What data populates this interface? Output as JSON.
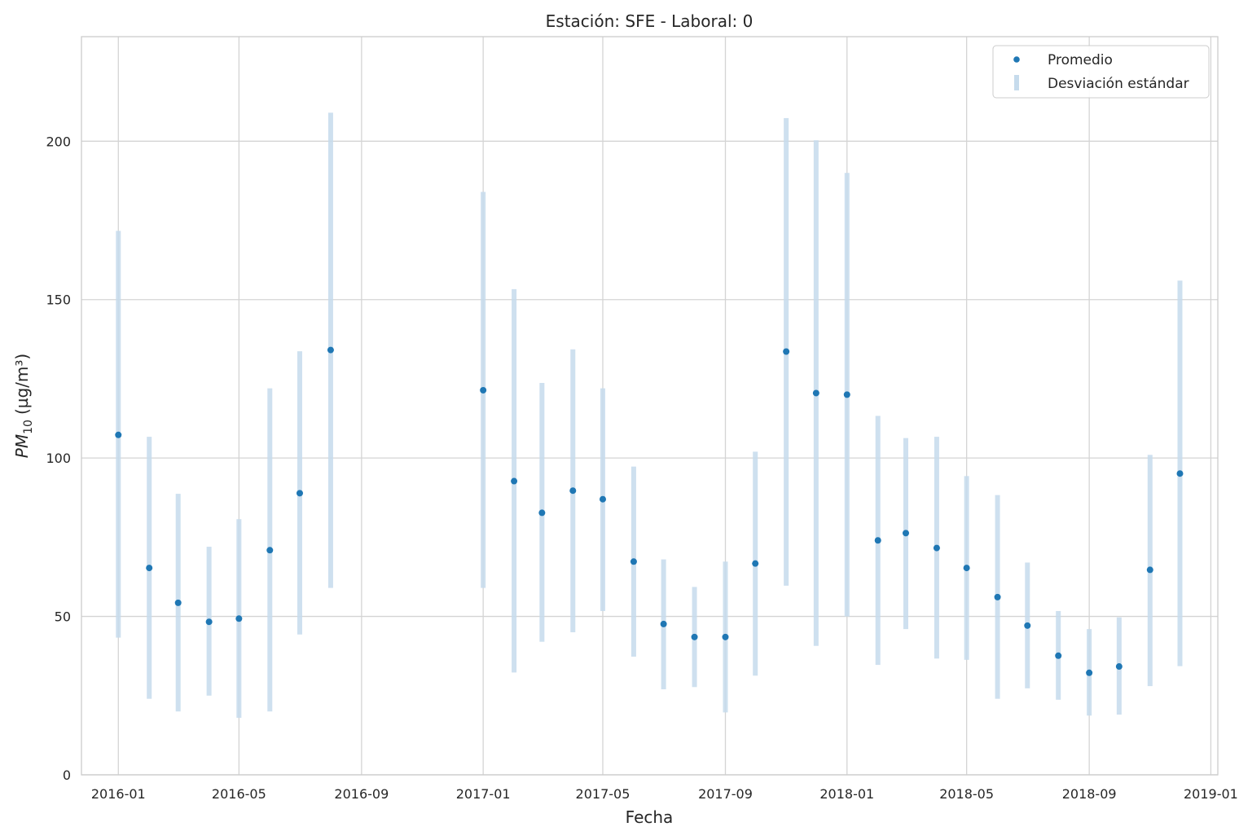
{
  "chart_data": {
    "type": "scatter",
    "title": "Estación: SFE - Laboral: 0",
    "xlabel": "Fecha",
    "ylabel_main": "PM",
    "ylabel_sub": "10",
    "ylabel_units": "(µg/m³)",
    "ylim": [
      0,
      233
    ],
    "xlim": [
      "2015-11-25",
      "2019-01-08"
    ],
    "grid": true,
    "legend_position": "top-right",
    "x_ticks": [
      "2016-01",
      "2016-05",
      "2016-09",
      "2017-01",
      "2017-05",
      "2017-09",
      "2018-01",
      "2018-05",
      "2018-09",
      "2019-01"
    ],
    "y_ticks": [
      0,
      50,
      100,
      150,
      200
    ],
    "colors": {
      "mean": "#1f77b4",
      "std": "#c6dbec",
      "grid": "#d4d4d4",
      "frame": "#cccccc"
    },
    "series": [
      {
        "name": "Promedio",
        "kind": "points"
      },
      {
        "name": "Desviación estándar",
        "kind": "bars"
      }
    ],
    "points": [
      {
        "x": "2016-01-01",
        "mean": 107.3,
        "low": 43.3,
        "high": 171.7
      },
      {
        "x": "2016-02-01",
        "mean": 65.3,
        "low": 24.0,
        "high": 106.7
      },
      {
        "x": "2016-03-01",
        "mean": 54.3,
        "low": 20.0,
        "high": 88.7
      },
      {
        "x": "2016-04-01",
        "mean": 48.3,
        "low": 25.0,
        "high": 72.0
      },
      {
        "x": "2016-05-01",
        "mean": 49.3,
        "low": 18.0,
        "high": 80.7
      },
      {
        "x": "2016-06-01",
        "mean": 70.9,
        "low": 20.0,
        "high": 122.0
      },
      {
        "x": "2016-07-01",
        "mean": 88.9,
        "low": 44.3,
        "high": 133.7
      },
      {
        "x": "2016-08-01",
        "mean": 134.1,
        "low": 59.0,
        "high": 209.0
      },
      {
        "x": "2017-01-01",
        "mean": 121.4,
        "low": 59.0,
        "high": 184.0
      },
      {
        "x": "2017-02-01",
        "mean": 92.7,
        "low": 32.3,
        "high": 153.3
      },
      {
        "x": "2017-03-01",
        "mean": 82.7,
        "low": 42.0,
        "high": 123.7
      },
      {
        "x": "2017-04-01",
        "mean": 89.7,
        "low": 45.0,
        "high": 134.3
      },
      {
        "x": "2017-05-01",
        "mean": 87.0,
        "low": 51.7,
        "high": 122.0
      },
      {
        "x": "2017-06-01",
        "mean": 67.3,
        "low": 37.3,
        "high": 97.3
      },
      {
        "x": "2017-07-01",
        "mean": 47.6,
        "low": 27.0,
        "high": 68.0
      },
      {
        "x": "2017-08-01",
        "mean": 43.5,
        "low": 27.7,
        "high": 59.3
      },
      {
        "x": "2017-09-01",
        "mean": 43.5,
        "low": 19.7,
        "high": 67.3
      },
      {
        "x": "2017-10-01",
        "mean": 66.7,
        "low": 31.3,
        "high": 102.0
      },
      {
        "x": "2017-11-01",
        "mean": 133.6,
        "low": 59.7,
        "high": 207.3
      },
      {
        "x": "2017-12-01",
        "mean": 120.5,
        "low": 40.7,
        "high": 200.3
      },
      {
        "x": "2018-01-01",
        "mean": 120.0,
        "low": 50.0,
        "high": 190.0
      },
      {
        "x": "2018-02-01",
        "mean": 74.0,
        "low": 34.7,
        "high": 113.3
      },
      {
        "x": "2018-03-01",
        "mean": 76.3,
        "low": 46.0,
        "high": 106.3
      },
      {
        "x": "2018-04-01",
        "mean": 71.6,
        "low": 36.7,
        "high": 106.7
      },
      {
        "x": "2018-05-01",
        "mean": 65.3,
        "low": 36.3,
        "high": 94.3
      },
      {
        "x": "2018-06-01",
        "mean": 56.1,
        "low": 24.0,
        "high": 88.3
      },
      {
        "x": "2018-07-01",
        "mean": 47.1,
        "low": 27.3,
        "high": 67.0
      },
      {
        "x": "2018-08-01",
        "mean": 37.6,
        "low": 23.7,
        "high": 51.7
      },
      {
        "x": "2018-09-01",
        "mean": 32.2,
        "low": 18.7,
        "high": 46.0
      },
      {
        "x": "2018-10-01",
        "mean": 34.2,
        "low": 19.0,
        "high": 49.7
      },
      {
        "x": "2018-11-01",
        "mean": 64.7,
        "low": 28.0,
        "high": 101.0
      },
      {
        "x": "2018-12-01",
        "mean": 95.1,
        "low": 34.3,
        "high": 156.0
      }
    ]
  }
}
